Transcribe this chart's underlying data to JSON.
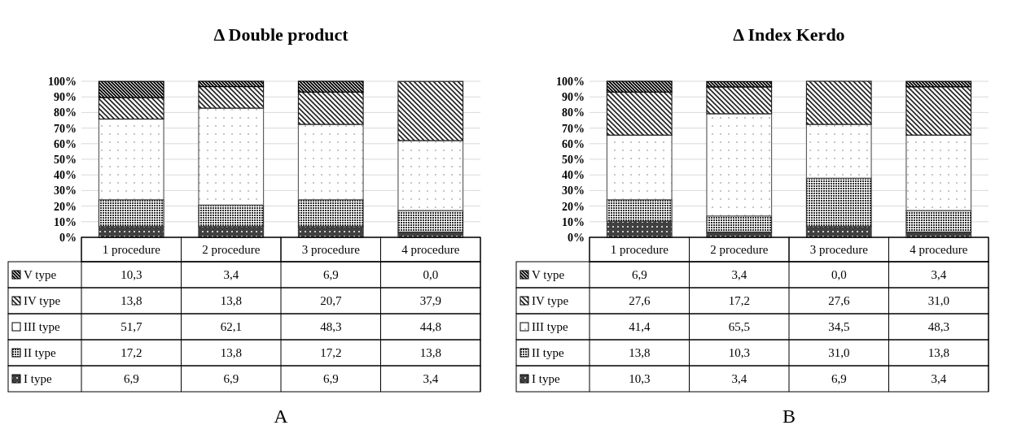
{
  "chart_data": [
    {
      "type": "bar",
      "stacked": true,
      "title": "Δ Double product",
      "categories": [
        "1 procedure",
        "2 procedure",
        "3 procedure",
        "4 procedure"
      ],
      "ylim": [
        0,
        100
      ],
      "yticks": [
        {
          "value": 0,
          "label": "0%"
        },
        {
          "value": 10,
          "label": "10%"
        },
        {
          "value": 20,
          "label": "20%"
        },
        {
          "value": 30,
          "label": "30%"
        },
        {
          "value": 40,
          "label": "40%"
        },
        {
          "value": 50,
          "label": "50%"
        },
        {
          "value": 60,
          "label": "60%"
        },
        {
          "value": 70,
          "label": "70%"
        },
        {
          "value": 80,
          "label": "80%"
        },
        {
          "value": 90,
          "label": "90%"
        },
        {
          "value": 100,
          "label": "100%"
        }
      ],
      "grid": "y",
      "legend": "left",
      "annotations": [
        "A"
      ],
      "series": [
        {
          "name": "I type",
          "color": "#404040",
          "values": [
            6.9,
            6.9,
            6.9,
            3.4
          ],
          "value_labels": [
            "6,9",
            "6,9",
            "6,9",
            "3,4"
          ]
        },
        {
          "name": "II type",
          "color": "#303030",
          "values": [
            17.2,
            13.8,
            17.2,
            13.8
          ],
          "value_labels": [
            "17,2",
            "13,8",
            "17,2",
            "13,8"
          ]
        },
        {
          "name": "III type",
          "color": "#606060",
          "values": [
            51.7,
            62.1,
            48.3,
            44.8
          ],
          "value_labels": [
            "51,7",
            "62,1",
            "48,3",
            "44,8"
          ]
        },
        {
          "name": "IV type",
          "color": "#202020",
          "values": [
            13.8,
            13.8,
            20.7,
            37.9
          ],
          "value_labels": [
            "13,8",
            "13,8",
            "20,7",
            "37,9"
          ]
        },
        {
          "name": "V type",
          "color": "#000000",
          "values": [
            10.3,
            3.4,
            6.9,
            0.0
          ],
          "value_labels": [
            "10,3",
            "3,4",
            "6,9",
            "0,0"
          ]
        }
      ]
    },
    {
      "type": "bar",
      "stacked": true,
      "title": "Δ Index Kerdo",
      "categories": [
        "1 procedure",
        "2 procedure",
        "3 procedure",
        "4 procedure"
      ],
      "ylim": [
        0,
        100
      ],
      "yticks": [
        {
          "value": 0,
          "label": "0%"
        },
        {
          "value": 10,
          "label": "10%"
        },
        {
          "value": 20,
          "label": "20%"
        },
        {
          "value": 30,
          "label": "30%"
        },
        {
          "value": 40,
          "label": "40%"
        },
        {
          "value": 50,
          "label": "50%"
        },
        {
          "value": 60,
          "label": "60%"
        },
        {
          "value": 70,
          "label": "70%"
        },
        {
          "value": 80,
          "label": "80%"
        },
        {
          "value": 90,
          "label": "90%"
        },
        {
          "value": 100,
          "label": "100%"
        }
      ],
      "grid": "y",
      "legend": "left",
      "annotations": [
        "B"
      ],
      "series": [
        {
          "name": "I type",
          "color": "#404040",
          "values": [
            10.3,
            3.4,
            6.9,
            3.4
          ],
          "value_labels": [
            "10,3",
            "3,4",
            "6,9",
            "3,4"
          ]
        },
        {
          "name": "II type",
          "color": "#303030",
          "values": [
            13.8,
            10.3,
            31.0,
            13.8
          ],
          "value_labels": [
            "13,8",
            "10,3",
            "31,0",
            "13,8"
          ]
        },
        {
          "name": "III type",
          "color": "#606060",
          "values": [
            41.4,
            65.5,
            34.5,
            48.3
          ],
          "value_labels": [
            "41,4",
            "65,5",
            "34,5",
            "48,3"
          ]
        },
        {
          "name": "IV type",
          "color": "#202020",
          "values": [
            27.6,
            17.2,
            27.6,
            31.0
          ],
          "value_labels": [
            "27,6",
            "17,2",
            "27,6",
            "31,0"
          ]
        },
        {
          "name": "V type",
          "color": "#000000",
          "values": [
            6.9,
            3.4,
            0.0,
            3.4
          ],
          "value_labels": [
            "6,9",
            "3,4",
            "0,0",
            "3,4"
          ]
        }
      ]
    }
  ]
}
